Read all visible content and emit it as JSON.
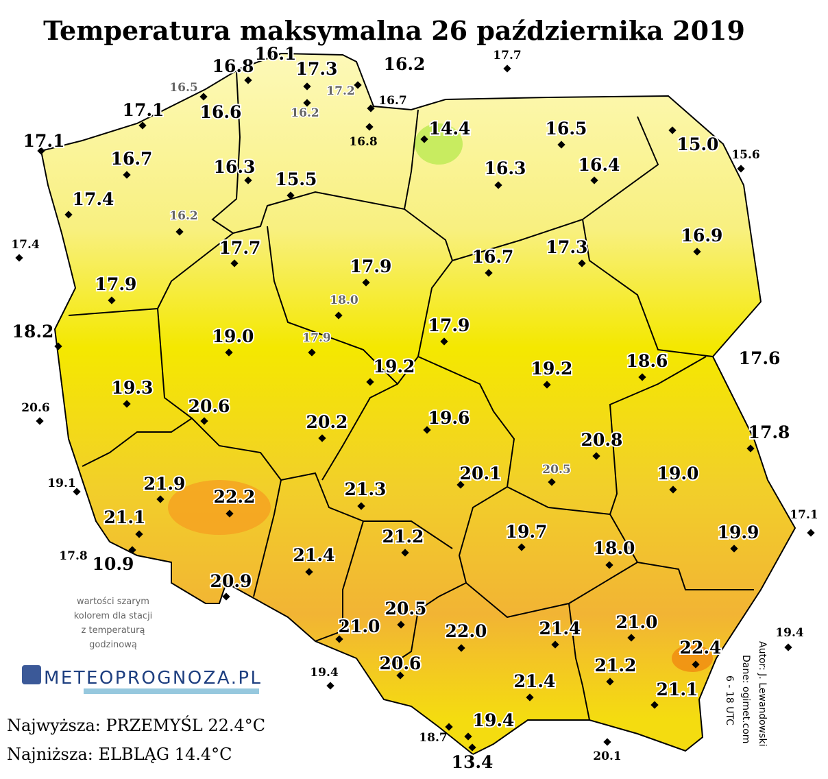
{
  "header": {
    "title": "Temperatura maksymalna 26 października 2019"
  },
  "stations": [
    "16.1",
    "16.8",
    "17.3",
    "16.2",
    "17.7",
    "16.5",
    "17.2",
    "16.7",
    "16.6",
    "16.2",
    "17.1",
    "16.8",
    "14.4",
    "16.5",
    "15.0",
    "15.6",
    "17.1",
    "16.7",
    "16.3",
    "16.3",
    "16.4",
    "15.5",
    "17.4",
    "16.2",
    "17.4",
    "17.7",
    "16.9",
    "16.7",
    "17.3",
    "17.9",
    "17.9",
    "18.0",
    "18.2",
    "17.9",
    "19.0",
    "17.9",
    "17.6",
    "19.2",
    "19.2",
    "18.6",
    "19.3",
    "20.6",
    "20.6",
    "20.2",
    "19.6",
    "17.8",
    "20.8",
    "20.5",
    "20.1",
    "19.0",
    "19.1",
    "21.9",
    "22.2",
    "21.3",
    "21.1",
    "17.1",
    "19.9",
    "19.7",
    "21.2",
    "18.0",
    "17.8",
    "10.9",
    "21.4",
    "20.9",
    "20.5",
    "21.0",
    "22.0",
    "21.4",
    "21.0",
    "19.4",
    "22.4",
    "19.4",
    "20.6",
    "21.2",
    "21.4",
    "21.1",
    "19.4",
    "18.7",
    "20.1",
    "13.4"
  ],
  "note": [
    "wartości szarym",
    "kolorem dla stacji",
    "z temperaturą",
    "godzinową"
  ],
  "logo": "METEOPROGNOZA.PL",
  "extremes": [
    "Najwyższa: PRZEMYŚL 22.4°C",
    "Najniższa: ELBLĄG 14.4°C"
  ],
  "credits": [
    "Autor: J. Lewandowski",
    "Dane: ogimet.com",
    "6 - 18 UTC"
  ]
}
